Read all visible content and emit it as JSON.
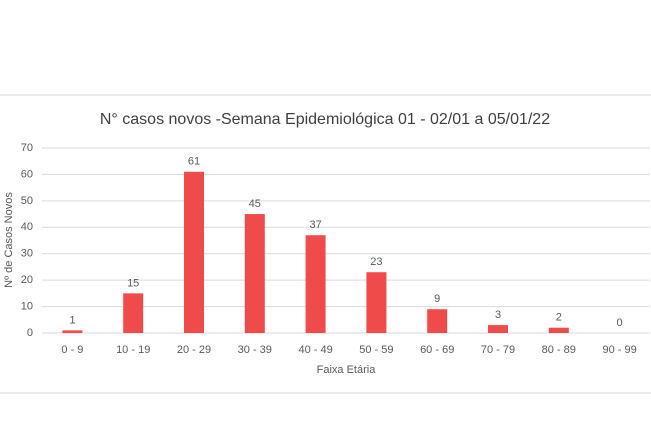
{
  "chart_data": {
    "type": "bar",
    "title": "N° casos novos  -Semana Epidemiológica  01  -  02/01 a 05/01/22",
    "x_label": "Faixa Etária",
    "y_label": "Nº de Casos Novos",
    "categories": [
      "0 - 9",
      "10 - 19",
      "20 - 29",
      "30 - 39",
      "40 - 49",
      "50 - 59",
      "60 - 69",
      "70 - 79",
      "80 - 89",
      "90 - 99"
    ],
    "values": [
      1,
      15,
      61,
      45,
      37,
      23,
      9,
      3,
      2,
      0
    ],
    "color": "#f04b4b",
    "ylim": [
      0,
      70
    ],
    "yticks": [
      0,
      10,
      20,
      30,
      40,
      50,
      60,
      70
    ],
    "grid": true
  }
}
